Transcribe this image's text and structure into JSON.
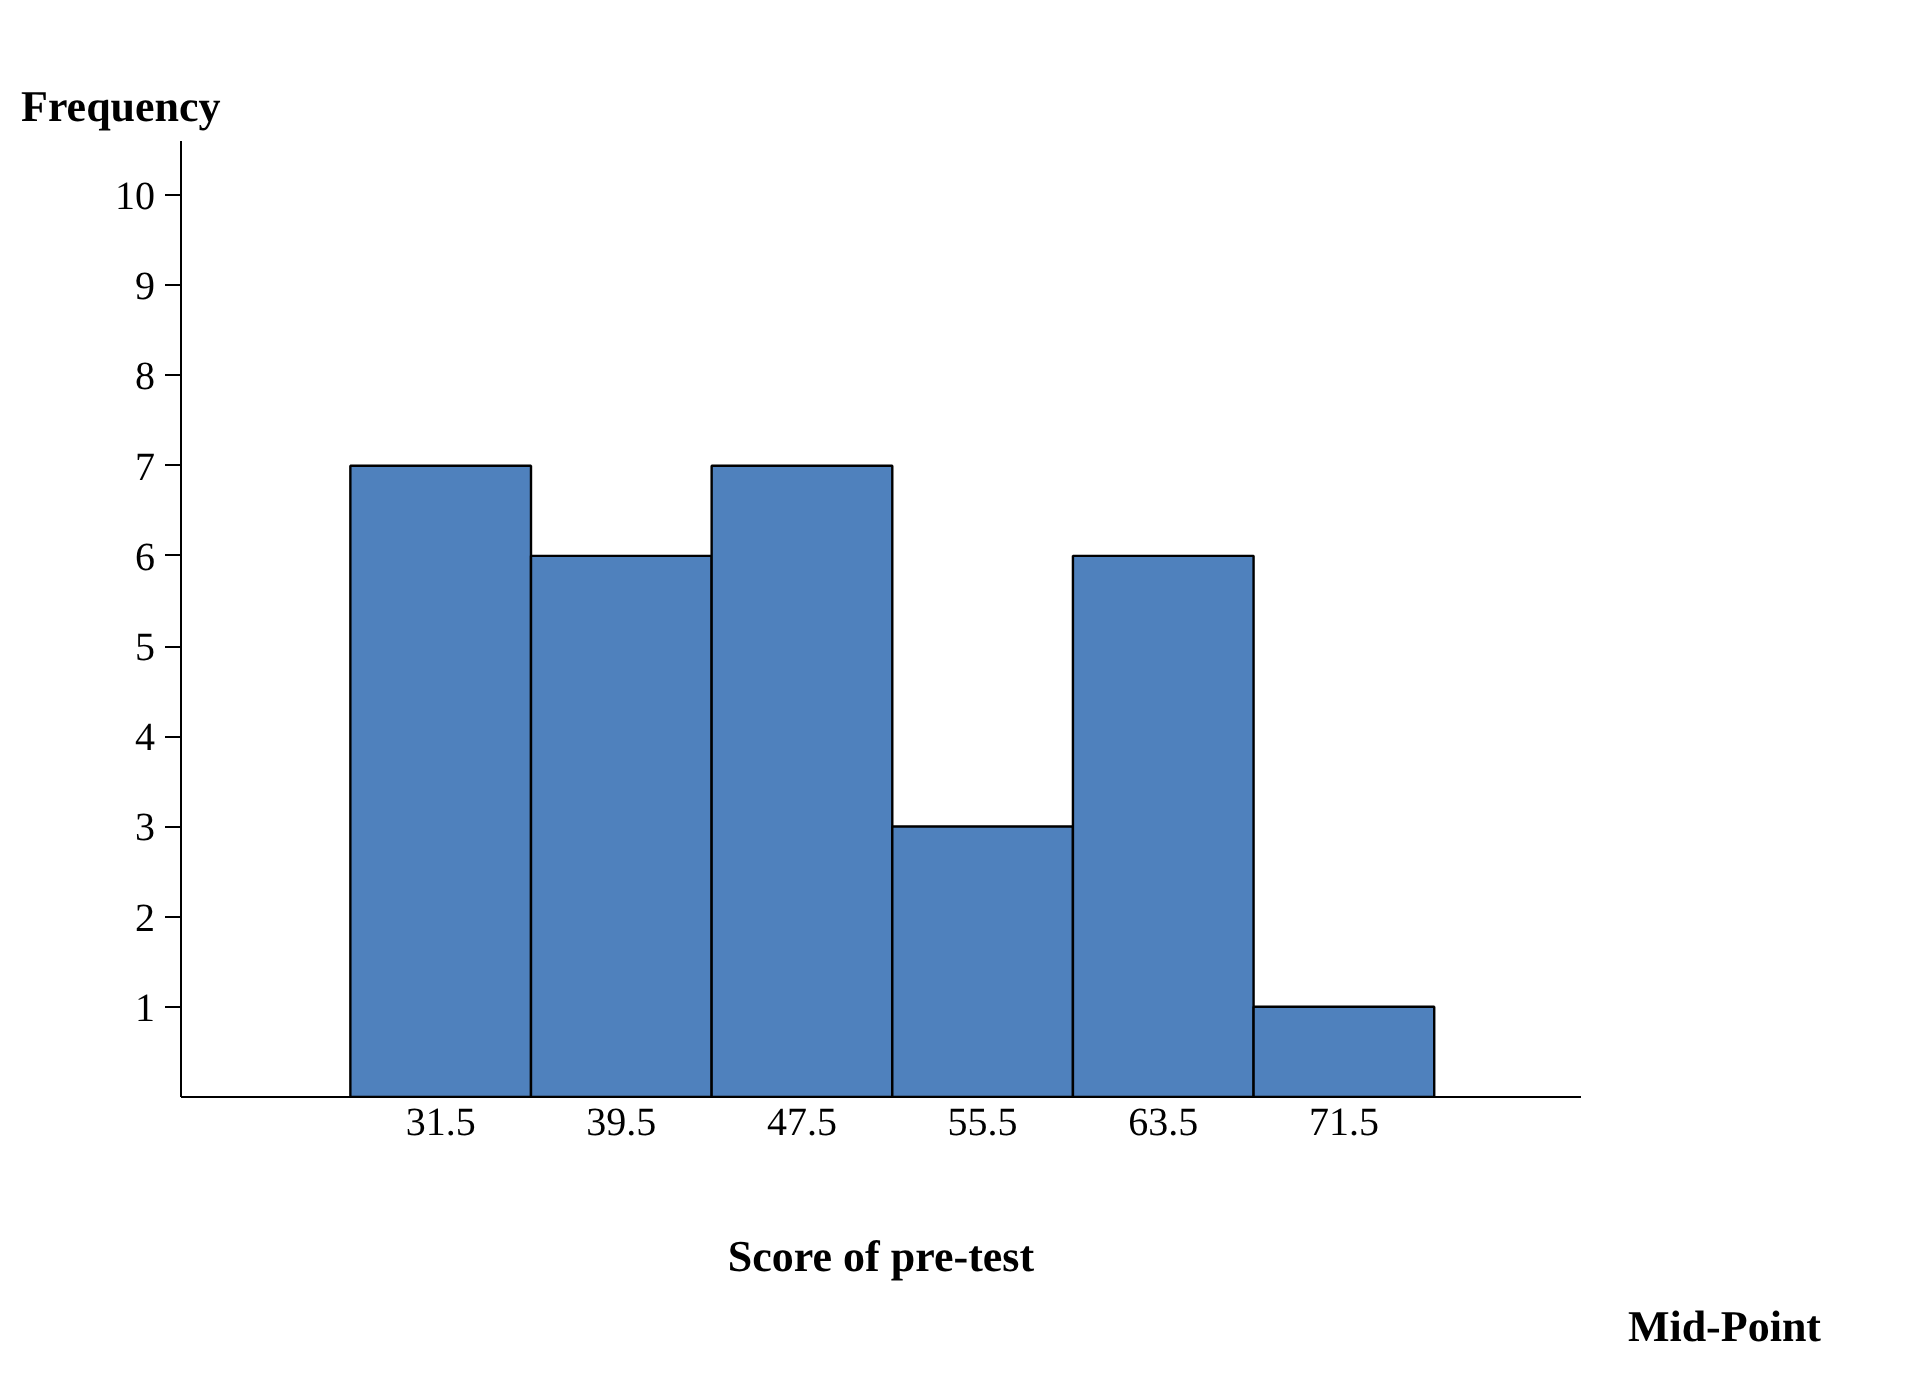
{
  "chart_data": {
    "type": "histogram",
    "xlabel": "Score of pre-test",
    "ylabel": "Frequency",
    "bins": [
      27.5,
      35.5,
      43.5,
      51.5,
      59.5,
      67.5,
      75.5
    ],
    "values": [
      7,
      6,
      7,
      3,
      6,
      1
    ],
    "color": "#4f81bd",
    "xlim": [
      20,
      82
    ],
    "xticks": [
      31.5,
      39.5,
      47.5,
      55.5,
      63.5,
      71.5
    ],
    "ylim": [
      0,
      10.6
    ],
    "yticks": [
      1,
      2,
      3,
      4,
      5,
      6,
      7,
      8,
      9,
      10
    ],
    "annotations": [
      "Mid-Point"
    ],
    "grid": false
  }
}
